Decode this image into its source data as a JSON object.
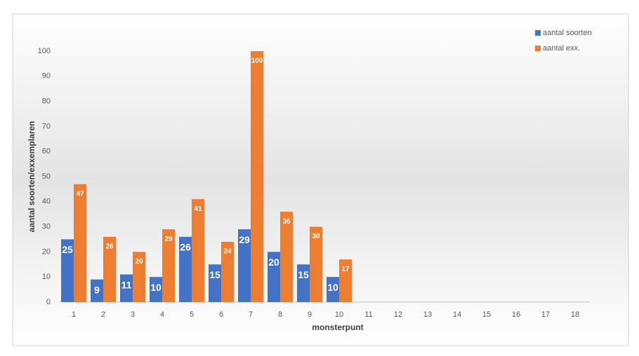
{
  "chart_data": {
    "type": "bar",
    "x_label": "monsterpunt",
    "y_label": "aantal soorten/exxemplaren",
    "categories": [
      "1",
      "2",
      "3",
      "4",
      "5",
      "6",
      "7",
      "8",
      "9",
      "10",
      "11",
      "12",
      "13",
      "14",
      "15",
      "16",
      "17",
      "18"
    ],
    "series": [
      {
        "name": "aantal soorten",
        "color": "#4472c4",
        "values": [
          25,
          9,
          11,
          10,
          26,
          15,
          29,
          20,
          15,
          10,
          null,
          null,
          null,
          null,
          null,
          null,
          null,
          null
        ]
      },
      {
        "name": "aantal exx.",
        "color": "#ed7d31",
        "values": [
          47,
          26,
          20,
          29,
          41,
          24,
          100,
          36,
          30,
          17,
          null,
          null,
          null,
          null,
          null,
          null,
          null,
          null
        ]
      }
    ],
    "ylim": [
      0,
      100
    ],
    "yticks": [
      0,
      10,
      20,
      30,
      40,
      50,
      60,
      70,
      80,
      90,
      100
    ],
    "grid": false,
    "legend": "top-right",
    "data_labels": true
  }
}
